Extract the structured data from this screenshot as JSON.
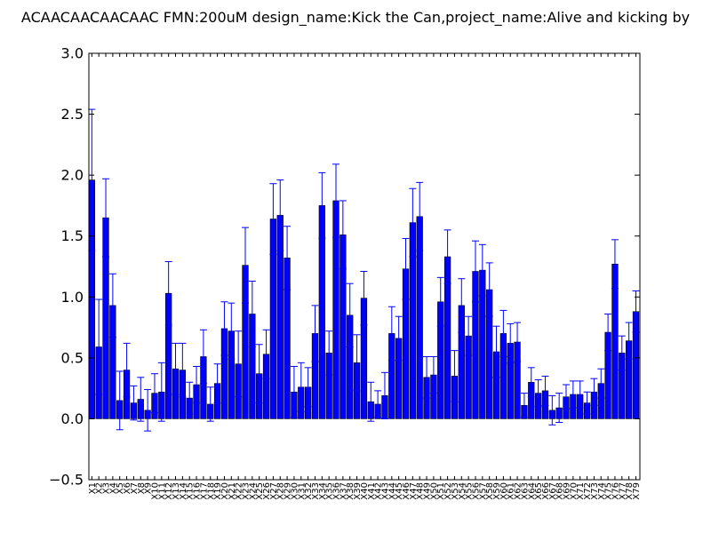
{
  "chart_data": {
    "type": "bar",
    "title": "ACAACAACAACAAC  FMN:200uM  design_name:Kick the Can,project_name:Alive and kicking by",
    "xlabel": "",
    "ylabel": "",
    "ylim": [
      -0.5,
      3.0
    ],
    "yticks": [
      "−0.5",
      "0.0",
      "0.5",
      "1.0",
      "1.5",
      "2.0",
      "2.5",
      "3.0"
    ],
    "grid": false,
    "bar_color": "#0000ff",
    "error_color": "#0000ff",
    "categories": [
      "X1",
      "X2",
      "X3",
      "X4",
      "X5",
      "X6",
      "X7",
      "X8",
      "X9",
      "X10",
      "X11",
      "X12",
      "X13",
      "X14",
      "X15",
      "X16",
      "X17",
      "X18",
      "X19",
      "X20",
      "X21",
      "X22",
      "X23",
      "X24",
      "X25",
      "X26",
      "X27",
      "X28",
      "X29",
      "X30",
      "X31",
      "X32",
      "X33",
      "X34",
      "X35",
      "X36",
      "X37",
      "X38",
      "X39",
      "X40",
      "X41",
      "X42",
      "X43",
      "X44",
      "X45",
      "X46",
      "X47",
      "X48",
      "X49",
      "X50",
      "X51",
      "X52",
      "X53",
      "X54",
      "X55",
      "X56",
      "X57",
      "X58",
      "X59",
      "X60",
      "X61",
      "X62",
      "X63",
      "X64",
      "X65",
      "X66",
      "X67",
      "X68",
      "X69",
      "X70",
      "X71",
      "X72",
      "X73",
      "X74",
      "X75",
      "X76",
      "X77",
      "X78",
      "X79"
    ],
    "values": [
      1.96,
      0.59,
      1.65,
      0.93,
      0.15,
      0.4,
      0.13,
      0.16,
      0.07,
      0.21,
      0.22,
      1.03,
      0.41,
      0.4,
      0.17,
      0.28,
      0.51,
      0.12,
      0.29,
      0.74,
      0.72,
      0.45,
      1.26,
      0.86,
      0.37,
      0.53,
      1.64,
      1.67,
      1.32,
      0.22,
      0.26,
      0.26,
      0.7,
      1.75,
      0.54,
      1.79,
      1.51,
      0.85,
      0.46,
      0.99,
      0.14,
      0.12,
      0.19,
      0.7,
      0.66,
      1.23,
      1.61,
      1.66,
      0.34,
      0.36,
      0.96,
      1.33,
      0.35,
      0.93,
      0.68,
      1.21,
      1.22,
      1.06,
      0.55,
      0.7,
      0.62,
      0.63,
      0.11,
      0.3,
      0.21,
      0.23,
      0.07,
      0.09,
      0.18,
      0.2,
      0.2,
      0.13,
      0.22,
      0.29,
      0.71,
      1.27,
      0.54,
      0.64,
      0.88
    ],
    "errors": [
      0.58,
      0.39,
      0.32,
      0.26,
      0.24,
      0.22,
      0.14,
      0.18,
      0.17,
      0.16,
      0.24,
      0.26,
      0.21,
      0.22,
      0.13,
      0.15,
      0.22,
      0.14,
      0.16,
      0.22,
      0.23,
      0.27,
      0.31,
      0.27,
      0.24,
      0.2,
      0.29,
      0.29,
      0.26,
      0.21,
      0.2,
      0.16,
      0.23,
      0.27,
      0.18,
      0.3,
      0.28,
      0.26,
      0.23,
      0.22,
      0.16,
      0.11,
      0.19,
      0.22,
      0.18,
      0.25,
      0.28,
      0.28,
      0.17,
      0.15,
      0.2,
      0.22,
      0.21,
      0.22,
      0.16,
      0.25,
      0.21,
      0.22,
      0.21,
      0.19,
      0.16,
      0.16,
      0.1,
      0.12,
      0.11,
      0.12,
      0.12,
      0.12,
      0.1,
      0.11,
      0.11,
      0.09,
      0.11,
      0.12,
      0.15,
      0.2,
      0.14,
      0.15,
      0.17
    ]
  }
}
